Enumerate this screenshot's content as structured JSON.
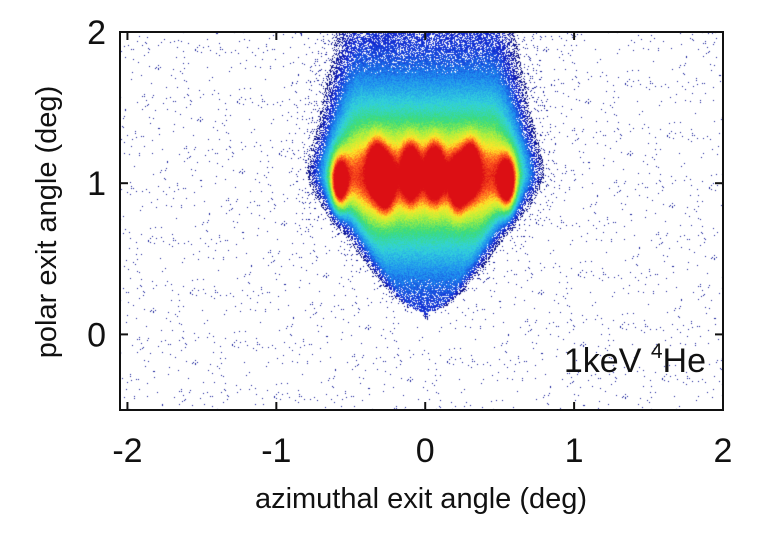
{
  "chart_data": {
    "type": "heatmap",
    "title": "",
    "xlabel": "azimuthal exit angle (deg)",
    "ylabel": "polar exit angle (deg)",
    "xlim": [
      -2.05,
      2.0
    ],
    "ylim": [
      -0.5,
      2.0
    ],
    "x_ticks": [
      -2,
      -1,
      0,
      1,
      2
    ],
    "y_ticks": [
      0,
      1,
      2
    ],
    "x_tick_labels": [
      "-2",
      "-1",
      "0",
      "1",
      "2"
    ],
    "y_tick_labels": [
      "0",
      "1",
      "2"
    ],
    "annotation": {
      "prefix": "1keV ",
      "superscript": "4",
      "suffix": "He"
    },
    "grid": false,
    "colormap": [
      "#0a0a6e",
      "#1428d2",
      "#1e8cf0",
      "#32d2dc",
      "#3cdc78",
      "#b4f03c",
      "#ffe628",
      "#ff5a1e",
      "#dc0f14"
    ],
    "intensity_peaks": [
      {
        "x": -0.58,
        "y": 1.0,
        "intensity": 1.0
      },
      {
        "x": -0.33,
        "y": 1.1,
        "intensity": 0.85
      },
      {
        "x": -0.27,
        "y": 1.0,
        "intensity": 0.8
      },
      {
        "x": -0.1,
        "y": 1.08,
        "intensity": 0.9
      },
      {
        "x": 0.06,
        "y": 1.08,
        "intensity": 0.88
      },
      {
        "x": 0.22,
        "y": 1.0,
        "intensity": 0.78
      },
      {
        "x": 0.3,
        "y": 1.1,
        "intensity": 0.85
      },
      {
        "x": 0.55,
        "y": 1.0,
        "intensity": 1.0
      }
    ],
    "distribution": {
      "band_center_y": 1.05,
      "band_half_width_x": 0.78,
      "upper_edge_y": 2.0,
      "lower_edge_y": 0.15
    }
  }
}
